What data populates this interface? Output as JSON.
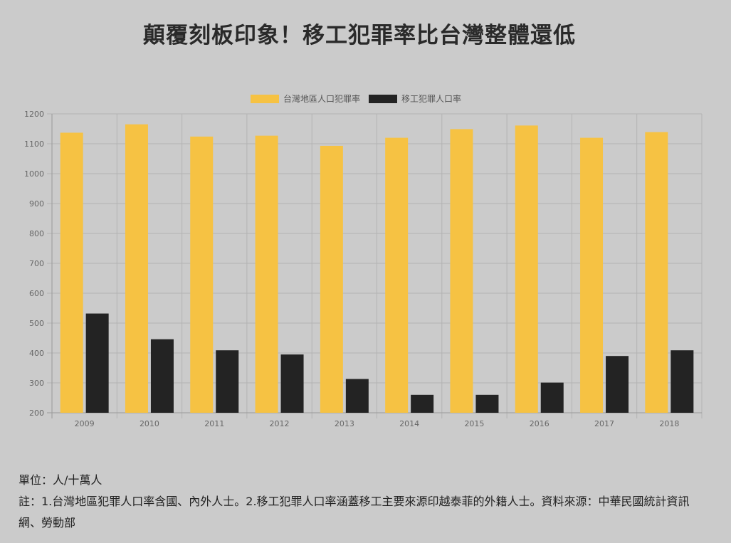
{
  "title": "顛覆刻板印象！移工犯罪率比台灣整體還低",
  "legend": [
    {
      "name": "台灣地區人口犯罪率",
      "color": "#f6c243"
    },
    {
      "name": "移工犯罪人口率",
      "color": "#232323"
    }
  ],
  "chart_data": {
    "type": "bar",
    "categories": [
      "2009",
      "2010",
      "2011",
      "2012",
      "2013",
      "2014",
      "2015",
      "2016",
      "2017",
      "2018"
    ],
    "series": [
      {
        "name": "台灣地區人口犯罪率",
        "color": "#f6c243",
        "values": [
          1137,
          1165,
          1124,
          1127,
          1093,
          1120,
          1149,
          1161,
          1120,
          1139
        ]
      },
      {
        "name": "移工犯罪人口率",
        "color": "#232323",
        "values": [
          532,
          446,
          409,
          395,
          313,
          260,
          260,
          301,
          390,
          409
        ]
      }
    ],
    "ylim": [
      200,
      1200
    ],
    "yticks": [
      "200",
      "300",
      "400",
      "500",
      "600",
      "700",
      "800",
      "900",
      "1000",
      "1100",
      "1200"
    ],
    "grid": true,
    "legend_position": "top"
  },
  "footer": {
    "unit": "單位：人/十萬人",
    "note": "註：1.台灣地區犯罪人口率含國、內外人士。2.移工犯罪人口率涵蓋移工主要來源印越泰菲的外籍人士。資料來源：中華民國統計資訊網、勞動部"
  }
}
